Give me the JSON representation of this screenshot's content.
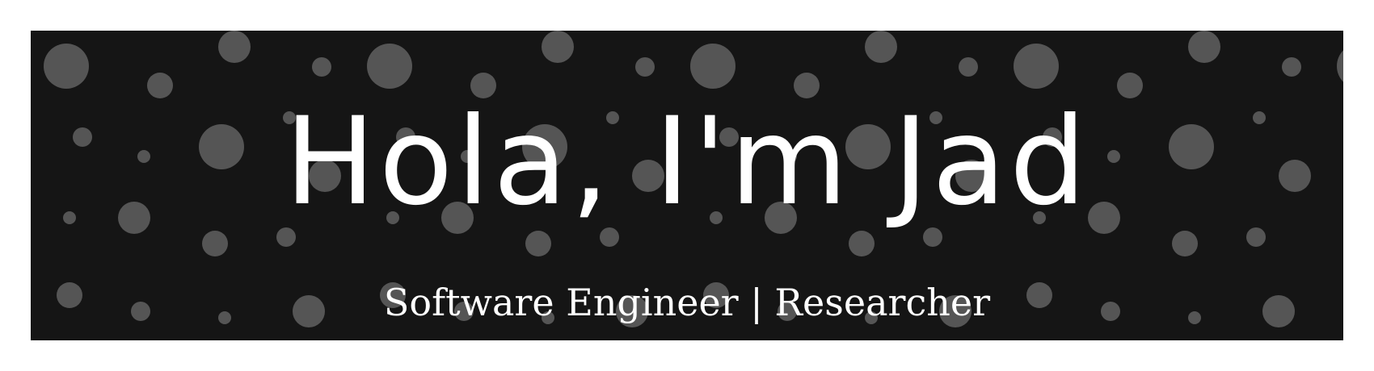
{
  "banner": {
    "headline": "Hola, I'm Jad",
    "subtitle": "Software Engineer | Researcher",
    "background_color": "#151515",
    "dot_color": "#555555",
    "text_color": "#ffffff",
    "pattern": "polka-dot-circles"
  }
}
